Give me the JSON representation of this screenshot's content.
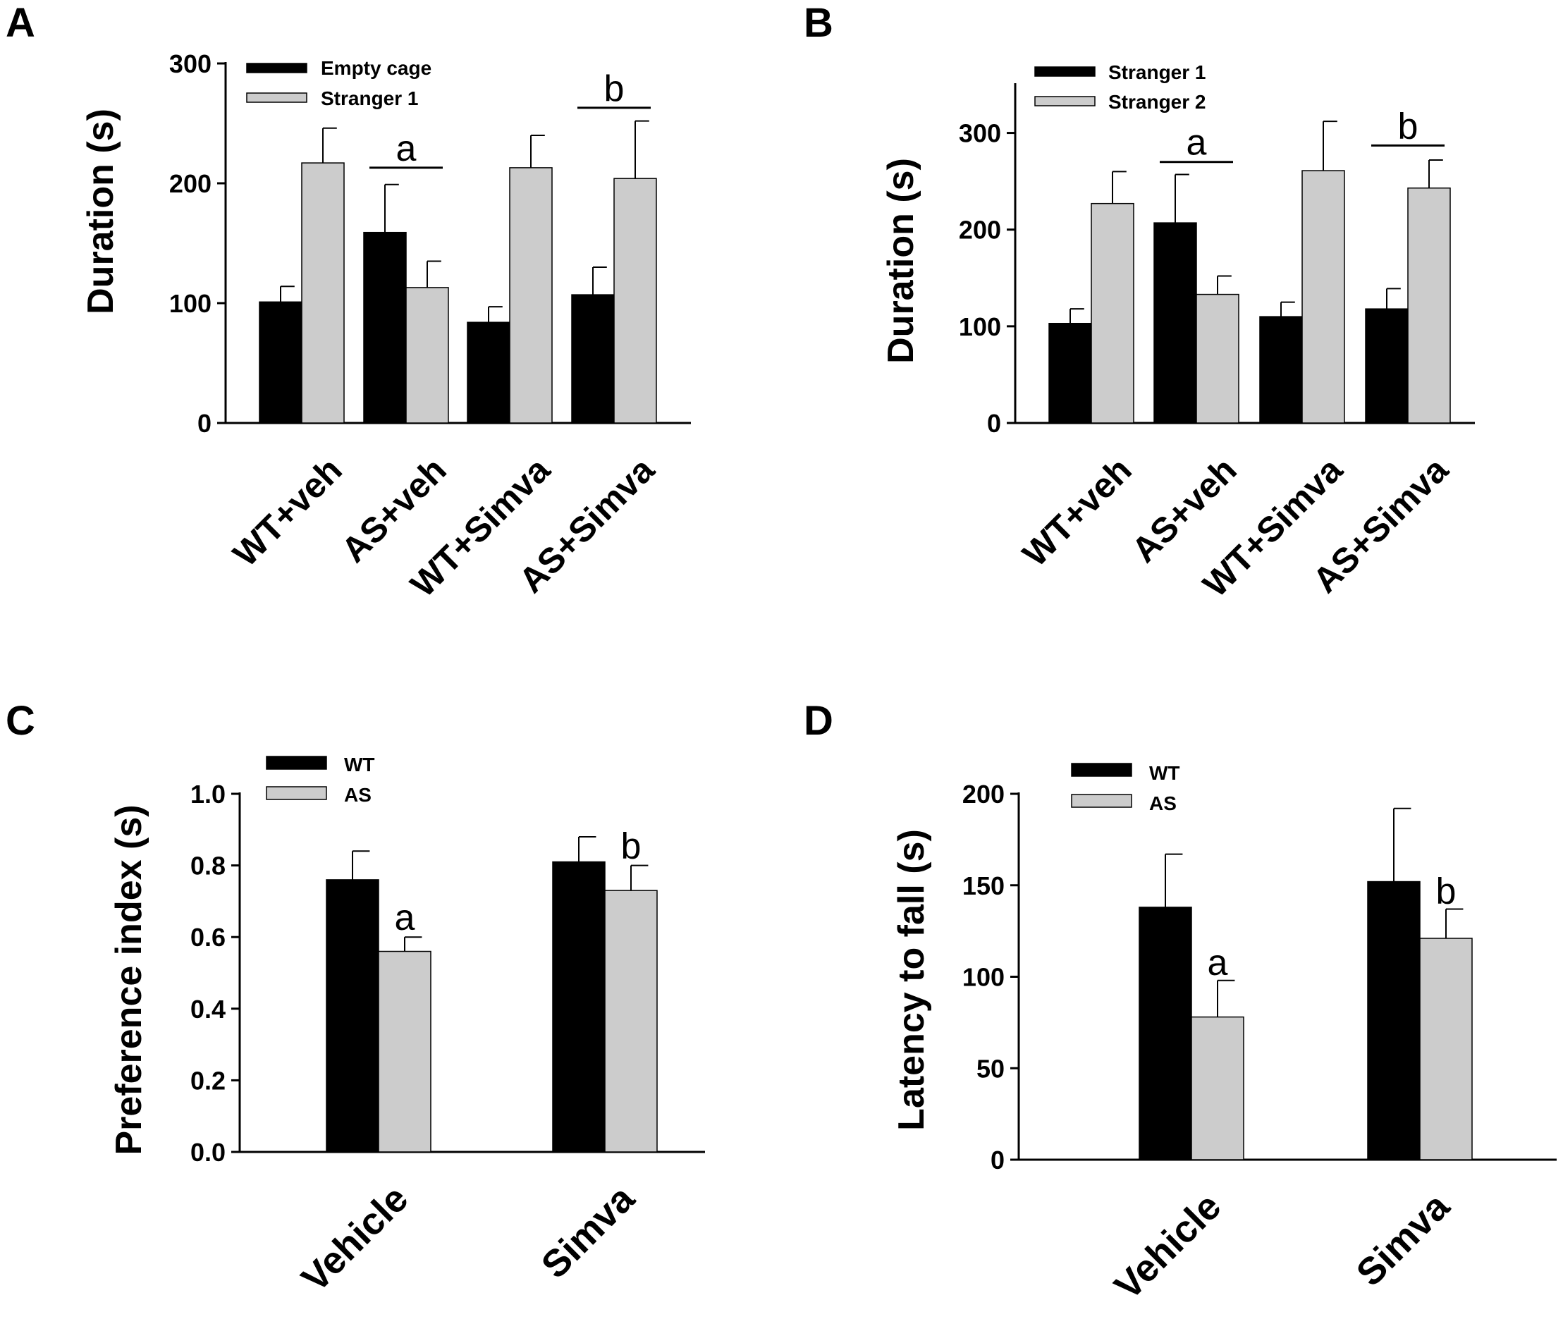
{
  "colors": {
    "black_bar": "#000000",
    "grey_bar": "#cccccc",
    "axis": "#000000"
  },
  "chart_data": [
    {
      "panel": "A",
      "type": "bar",
      "ylabel": "Duration (s)",
      "ylim": [
        0,
        300
      ],
      "yticks": [
        0,
        100,
        200,
        300
      ],
      "categories": [
        "WT+veh",
        "AS+veh",
        "WT+Simva",
        "AS+Simva"
      ],
      "series": [
        {
          "name": "Empty cage",
          "color": "#000000",
          "values": [
            101,
            159,
            84,
            107
          ],
          "errors": [
            13,
            40,
            13,
            23
          ]
        },
        {
          "name": "Stranger 1",
          "color": "#cccccc",
          "values": [
            217,
            113,
            213,
            204
          ],
          "errors": [
            29,
            22,
            27,
            48
          ]
        }
      ],
      "annotations": [
        {
          "text": "a",
          "category": 1,
          "y": 213
        },
        {
          "text": "b",
          "category": 3,
          "y": 263
        }
      ]
    },
    {
      "panel": "B",
      "type": "bar",
      "ylabel": "Duration (s)",
      "ylim": [
        0,
        350
      ],
      "yticks": [
        0,
        100,
        200,
        300
      ],
      "categories": [
        "WT+veh",
        "AS+veh",
        "WT+Simva",
        "AS+Simva"
      ],
      "series": [
        {
          "name": "Stranger 1",
          "color": "#000000",
          "values": [
            103,
            207,
            110,
            118
          ],
          "errors": [
            15,
            50,
            15,
            21
          ]
        },
        {
          "name": "Stranger 2",
          "color": "#cccccc",
          "values": [
            227,
            133,
            261,
            243
          ],
          "errors": [
            33,
            19,
            51,
            29
          ]
        }
      ],
      "annotations": [
        {
          "text": "a",
          "category": 1,
          "y": 270
        },
        {
          "text": "b",
          "category": 3,
          "y": 287
        }
      ]
    },
    {
      "panel": "C",
      "type": "bar",
      "ylabel": "Preference index (s)",
      "ylim": [
        0,
        1.0
      ],
      "yticks": [
        0.0,
        0.2,
        0.4,
        0.6,
        0.8,
        1.0
      ],
      "ytick_labels": [
        "0.0",
        "0.2",
        "0.4",
        "0.6",
        "0.8",
        "1.0"
      ],
      "categories": [
        "Vehicle",
        "Simva"
      ],
      "series": [
        {
          "name": "WT",
          "color": "#000000",
          "values": [
            0.76,
            0.81
          ],
          "errors": [
            0.08,
            0.07
          ]
        },
        {
          "name": "AS",
          "color": "#cccccc",
          "values": [
            0.56,
            0.73
          ],
          "errors": [
            0.04,
            0.07
          ]
        }
      ],
      "annotations": [
        {
          "text": "a",
          "series": 1,
          "category": 0,
          "y": 0.62
        },
        {
          "text": "b",
          "series": 1,
          "category": 1,
          "y": 0.82
        }
      ]
    },
    {
      "panel": "D",
      "type": "bar",
      "ylabel": "Latency to fall (s)",
      "ylim": [
        0,
        200
      ],
      "yticks": [
        0,
        50,
        100,
        150,
        200
      ],
      "categories": [
        "Vehicle",
        "Simva"
      ],
      "series": [
        {
          "name": "WT",
          "color": "#000000",
          "values": [
            138,
            152
          ],
          "errors": [
            29,
            40
          ]
        },
        {
          "name": "AS",
          "color": "#cccccc",
          "values": [
            78,
            121
          ],
          "errors": [
            20,
            16
          ]
        }
      ],
      "annotations": [
        {
          "text": "a",
          "series": 1,
          "category": 0,
          "y": 101
        },
        {
          "text": "b",
          "series": 1,
          "category": 1,
          "y": 140
        }
      ]
    }
  ]
}
